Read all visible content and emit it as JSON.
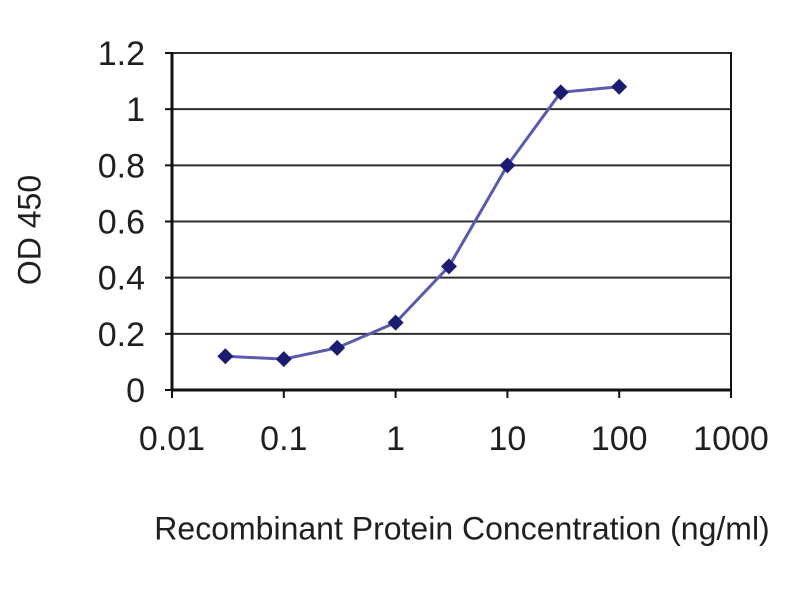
{
  "chart_data": {
    "type": "line",
    "title": "",
    "xlabel": "Recombinant Protein Concentration (ng/ml)",
    "ylabel": "OD 450",
    "xscale": "log",
    "xlim": [
      0.01,
      1000
    ],
    "ylim": [
      0,
      1.2
    ],
    "x": [
      0.03,
      0.1,
      0.3,
      1,
      3,
      10,
      30,
      100
    ],
    "series": [
      {
        "name": "OD 450",
        "marker": "diamond",
        "values": [
          0.12,
          0.11,
          0.15,
          0.24,
          0.44,
          0.8,
          1.06,
          1.08
        ]
      }
    ],
    "x_tick_values": [
      0.01,
      0.1,
      1,
      10,
      100,
      1000
    ],
    "x_tick_labels": [
      "0.01",
      "0.1",
      "1",
      "10",
      "100",
      "1000"
    ],
    "y_tick_values": [
      0,
      0.2,
      0.4,
      0.6,
      0.8,
      1,
      1.2
    ],
    "y_tick_labels": [
      "0",
      "0.2",
      "0.4",
      "0.6",
      "0.8",
      "1",
      "1.2"
    ],
    "grid": "horizontal",
    "legend": "none",
    "colors": {
      "line": "#5a5aae",
      "marker": "#1b1b72",
      "grid": "#2e2e2e",
      "axis": "#111111",
      "text": "#1f1f1f",
      "background": "#ffffff"
    }
  }
}
